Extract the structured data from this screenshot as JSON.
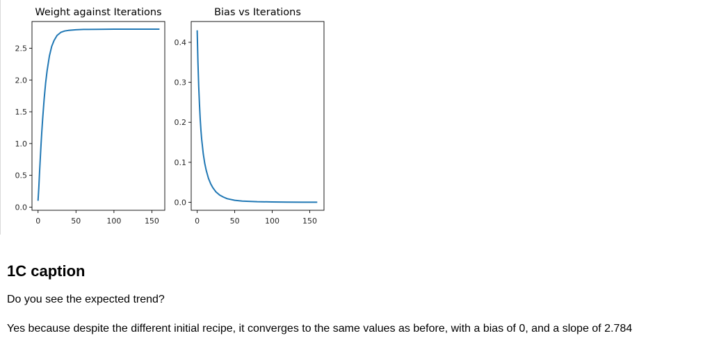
{
  "chart_data": [
    {
      "type": "line",
      "title": "Weight against Iterations",
      "xlabel": "",
      "ylabel": "",
      "xlim": [
        -8,
        167
      ],
      "ylim": [
        -0.05,
        2.92
      ],
      "xticks": [
        0,
        50,
        100,
        150
      ],
      "yticks": [
        0.0,
        0.5,
        1.0,
        1.5,
        2.0,
        2.5
      ],
      "x_tick_labels": [
        "0",
        "50",
        "100",
        "150"
      ],
      "y_tick_labels": [
        "0.0",
        "0.5",
        "1.0",
        "1.5",
        "2.0",
        "2.5"
      ],
      "grid": false,
      "series": [
        {
          "color": "#1f77b4",
          "x": [
            0,
            1,
            2,
            3,
            4,
            5,
            6,
            8,
            10,
            12,
            15,
            18,
            21,
            25,
            30,
            35,
            40,
            50,
            60,
            80,
            100,
            120,
            140,
            160
          ],
          "y": [
            0.1,
            0.3,
            0.55,
            0.78,
            1.0,
            1.2,
            1.38,
            1.7,
            1.95,
            2.15,
            2.38,
            2.53,
            2.62,
            2.7,
            2.75,
            2.77,
            2.78,
            2.79,
            2.795,
            2.798,
            2.8,
            2.8,
            2.8,
            2.8
          ]
        }
      ]
    },
    {
      "type": "line",
      "title": "Bias vs Iterations",
      "xlabel": "",
      "ylabel": "",
      "xlim": [
        -8,
        169
      ],
      "ylim": [
        -0.02,
        0.452
      ],
      "xticks": [
        0,
        50,
        100,
        150
      ],
      "yticks": [
        0.0,
        0.1,
        0.2,
        0.3,
        0.4
      ],
      "x_tick_labels": [
        "0",
        "50",
        "100",
        "150"
      ],
      "y_tick_labels": [
        "0.0",
        "0.1",
        "0.2",
        "0.3",
        "0.4"
      ],
      "grid": false,
      "series": [
        {
          "color": "#1f77b4",
          "x": [
            0,
            1,
            2,
            3,
            4,
            5,
            6,
            8,
            10,
            12,
            15,
            18,
            21,
            25,
            30,
            35,
            40,
            50,
            60,
            80,
            100,
            120,
            140,
            160
          ],
          "y": [
            0.43,
            0.35,
            0.29,
            0.245,
            0.21,
            0.18,
            0.157,
            0.122,
            0.098,
            0.08,
            0.06,
            0.046,
            0.036,
            0.026,
            0.018,
            0.013,
            0.009,
            0.005,
            0.003,
            0.0015,
            0.0008,
            0.0004,
            0.0002,
            0.0001
          ]
        }
      ]
    }
  ],
  "text": {
    "heading": "1C caption",
    "question": "Do you see the expected trend?",
    "answer": "Yes because despite the different initial recipe, it converges to the same values as before, with a bias of 0, and a slope of 2.784"
  }
}
